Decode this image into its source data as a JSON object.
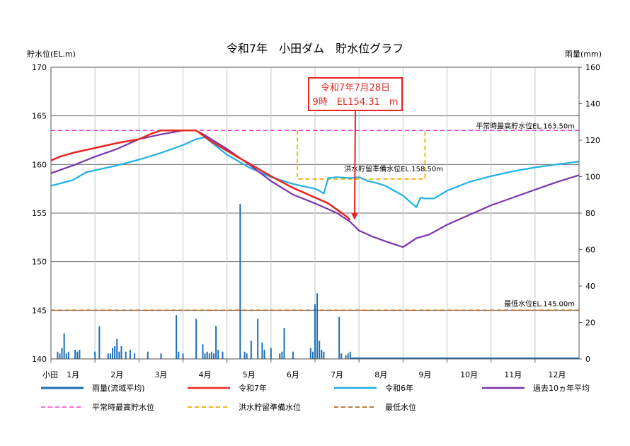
{
  "chart_data": {
    "type": "line",
    "title": "令和7年　小田ダム　貯水位グラフ",
    "ylabel_left": "貯水位(EL.m)",
    "ylabel_right": "雨量(mm)",
    "ylim_left": [
      140,
      170
    ],
    "ylim_right": [
      0,
      160
    ],
    "yticks_left": [
      "140",
      "145",
      "150",
      "155",
      "160",
      "165",
      "170"
    ],
    "yticks_right": [
      "0",
      "20",
      "40",
      "60",
      "80",
      "100",
      "120",
      "140",
      "160"
    ],
    "xlim": [
      1,
      13
    ],
    "station_label": "小田",
    "months": [
      "1月",
      "2月",
      "3月",
      "4月",
      "5月",
      "6月",
      "7月",
      "8月",
      "9月",
      "10月",
      "11月",
      "12月"
    ],
    "grid": true,
    "callout": {
      "line1": "令和7年7月28日",
      "line2": "9時　EL154.31　m",
      "x": 7.9,
      "y": 154.31
    },
    "annotations": [
      {
        "text": "平常時最高貯水位EL.163.50m"
      },
      {
        "text": "洪水貯留準備水位EL.158.50m"
      },
      {
        "text": "最低水位EL.145.00m"
      }
    ],
    "series": [
      {
        "name": "令和7年",
        "color": "#e8251f",
        "x": [
          1,
          1.2,
          1.5,
          2,
          2.5,
          3,
          3.3,
          3.5,
          4,
          4.3,
          4.6,
          5,
          5.5,
          6,
          6.5,
          7,
          7.3,
          7.55,
          7.7,
          7.8
        ],
        "y": [
          160.4,
          160.8,
          161.2,
          161.7,
          162.2,
          162.6,
          163.2,
          163.5,
          163.5,
          163.5,
          162.5,
          161.4,
          160.1,
          158.8,
          157.6,
          156.6,
          156.0,
          155.2,
          154.7,
          154.3
        ]
      },
      {
        "name": "令和6年",
        "color": "#1fb0e6",
        "x": [
          1,
          1.5,
          1.8,
          2,
          2.5,
          3,
          3.5,
          4,
          4.3,
          4.5,
          5,
          5.5,
          6,
          6.5,
          7,
          7.1,
          7.2,
          7.3,
          7.5,
          7.8,
          8,
          8.2,
          8.4,
          8.6,
          9,
          9.2,
          9.3,
          9.4,
          9.5,
          9.7,
          10,
          10.5,
          11,
          11.5,
          12,
          12.5,
          13
        ],
        "y": [
          157.8,
          158.4,
          159.2,
          159.4,
          159.9,
          160.5,
          161.2,
          162.0,
          162.6,
          162.8,
          161.0,
          159.7,
          158.7,
          158.0,
          157.5,
          157.3,
          157.0,
          158.6,
          158.7,
          158.6,
          158.7,
          158.3,
          158.1,
          157.8,
          156.8,
          156.0,
          155.6,
          156.6,
          156.5,
          156.5,
          157.3,
          158.2,
          158.8,
          159.3,
          159.7,
          160.0,
          160.3
        ]
      },
      {
        "name": "過去10ヵ年平均",
        "color": "#7a35a8",
        "x": [
          1,
          1.5,
          2,
          2.5,
          3,
          3.5,
          4,
          4.3,
          4.5,
          5,
          5.5,
          6,
          6.5,
          7,
          7.5,
          7.8,
          8,
          8.3,
          8.6,
          9,
          9.3,
          9.6,
          10,
          10.5,
          11,
          11.5,
          12,
          12.5,
          13
        ],
        "y": [
          159.1,
          159.9,
          160.8,
          161.6,
          162.6,
          163.1,
          163.5,
          163.5,
          163.0,
          161.6,
          160.0,
          158.3,
          156.9,
          156.0,
          155.0,
          154.1,
          153.2,
          152.6,
          152.1,
          151.5,
          152.4,
          152.8,
          153.8,
          154.8,
          155.8,
          156.6,
          157.4,
          158.2,
          158.9
        ]
      },
      {
        "name": "平常時最高貯水位",
        "color": "#f43ad6",
        "x": [
          1,
          13
        ],
        "y": [
          163.5,
          163.5
        ]
      },
      {
        "name": "洪水貯留準備水位",
        "color": "#f6b31d",
        "x": [
          6.6,
          6.6,
          9.5,
          9.5
        ],
        "y": [
          163.5,
          158.5,
          158.5,
          163.5
        ]
      },
      {
        "name": "最低水位",
        "color": "#c47a37",
        "x": [
          1,
          13
        ],
        "y": [
          145.0,
          145.0
        ]
      }
    ],
    "rainfall": {
      "name": "雨量(流域平均)",
      "color": "#1d6fb5",
      "x": [
        1.15,
        1.2,
        1.25,
        1.3,
        1.35,
        1.4,
        1.55,
        1.6,
        1.65,
        2.0,
        2.1,
        2.3,
        2.35,
        2.4,
        2.45,
        2.5,
        2.55,
        2.6,
        2.7,
        2.8,
        2.9,
        3.2,
        3.5,
        3.85,
        3.9,
        4.0,
        4.3,
        4.45,
        4.5,
        4.55,
        4.6,
        4.65,
        4.7,
        4.75,
        4.8,
        4.9,
        5.3,
        5.4,
        5.45,
        5.55,
        5.7,
        5.8,
        5.85,
        6.0,
        6.2,
        6.25,
        6.3,
        6.5,
        6.9,
        6.95,
        7.0,
        7.05,
        7.1,
        7.15,
        7.2,
        7.55,
        7.6,
        7.7,
        7.75,
        7.8
      ],
      "y": [
        4,
        3,
        6,
        14,
        3,
        4,
        5,
        4,
        5,
        4,
        18,
        3,
        3,
        6,
        7,
        11,
        4,
        7,
        4,
        5,
        3,
        4,
        3,
        24,
        4,
        3,
        22,
        8,
        3,
        4,
        3,
        4,
        3,
        18,
        5,
        4,
        85,
        4,
        3,
        10,
        22,
        9,
        5,
        6,
        3,
        4,
        17,
        4,
        6,
        4,
        30,
        36,
        10,
        5,
        4,
        23,
        3,
        2,
        3,
        4
      ]
    },
    "legend": [
      {
        "label": "雨量(流域平均)",
        "style": "rain"
      },
      {
        "label": "令和7年",
        "style": "r7"
      },
      {
        "label": "令和6年",
        "style": "r6"
      },
      {
        "label": "過去10ヵ年平均",
        "style": "avg"
      },
      {
        "label": "平常時最高貯水位",
        "style": "max"
      },
      {
        "label": "洪水貯留準備水位",
        "style": "flood"
      },
      {
        "label": "最低水位",
        "style": "min"
      }
    ]
  }
}
